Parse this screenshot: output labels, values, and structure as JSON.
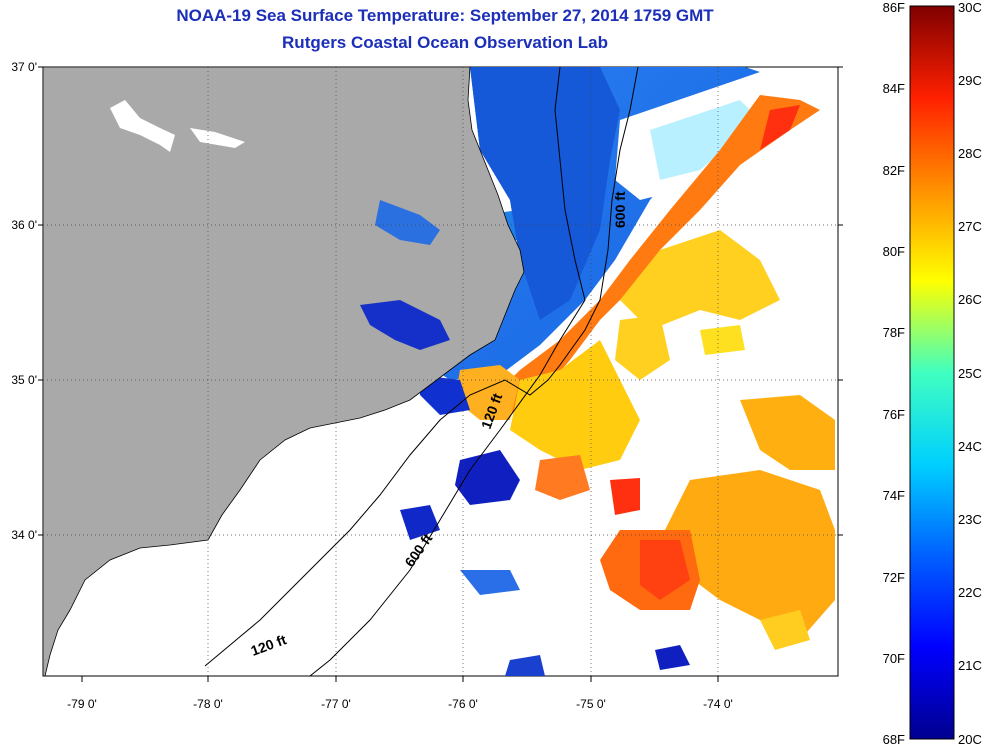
{
  "title": "NOAA-19 Sea Surface Temperature:  September 27, 2014 1759 GMT",
  "subtitle": "Rutgers Coastal Ocean Observation Lab",
  "axes": {
    "lat_labels": [
      "37 0'",
      "36 0'",
      "35 0'",
      "34 0'"
    ],
    "lon_labels": [
      "-79 0'",
      "-78 0'",
      "-77 0'",
      "-76 0'",
      "-75 0'",
      "-74 0'"
    ]
  },
  "contours": {
    "label_120_north": "120 ft",
    "label_600_north": "600 ft",
    "label_600_south": "600 ft",
    "label_120_south": "120 ft"
  },
  "colorbar": {
    "fahrenheit": [
      "86F",
      "84F",
      "82F",
      "80F",
      "78F",
      "76F",
      "74F",
      "72F",
      "70F",
      "68F"
    ],
    "celsius": [
      "30C",
      "29C",
      "28C",
      "27C",
      "26C",
      "25C",
      "24C",
      "23C",
      "22C",
      "21C",
      "20C"
    ]
  },
  "colors": {
    "land": "#a9a9a9",
    "title": "#1c2fb8",
    "scale": [
      "#00008f",
      "#0000ff",
      "#007fff",
      "#00ffff",
      "#7fff7f",
      "#ffff00",
      "#ff7f00",
      "#ff0000",
      "#7f0000"
    ]
  }
}
